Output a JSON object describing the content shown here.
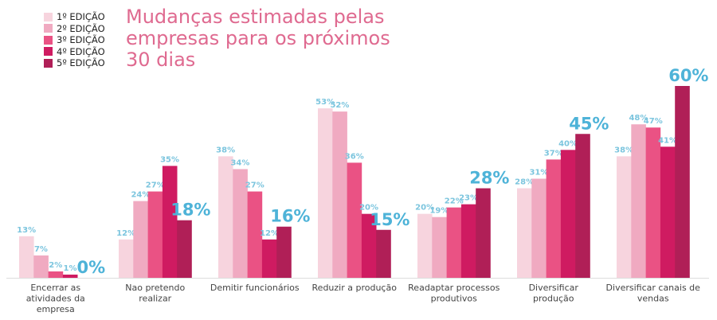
{
  "chart_data": {
    "type": "bar",
    "title": "Mudanças estimadas pelas empresas para os próximos 30 dias",
    "categories": [
      [
        "Encerrar as",
        "atividades da",
        "empresa"
      ],
      [
        "Nao pretendo",
        "realizar"
      ],
      [
        "Demitir funcionários"
      ],
      [
        "Reduzir a produção"
      ],
      [
        "Readaptar processos",
        "produtivos"
      ],
      [
        "Diversificar",
        "produção"
      ],
      [
        "Diversificar canais de",
        "vendas"
      ]
    ],
    "series": [
      {
        "name": "1º EDIÇÃO",
        "color": "#f7d4de",
        "values": [
          13,
          12,
          38,
          53,
          20,
          28,
          38
        ]
      },
      {
        "name": "2º EDIÇÃO",
        "color": "#f0aac1",
        "values": [
          7,
          24,
          34,
          52,
          19,
          31,
          48
        ]
      },
      {
        "name": "3º EDIÇÃO",
        "color": "#ea5284",
        "values": [
          2,
          27,
          27,
          36,
          22,
          37,
          47
        ]
      },
      {
        "name": "4º EDIÇÃO",
        "color": "#cf1b61",
        "values": [
          1,
          35,
          12,
          20,
          23,
          40,
          41
        ]
      },
      {
        "name": "5º EDIÇÃO",
        "color": "#b01f57",
        "values": [
          0,
          18,
          16,
          15,
          28,
          45,
          60
        ]
      }
    ],
    "value_suffix": "%",
    "ylim": [
      0,
      60
    ],
    "grid": false,
    "legend_position": "top-left",
    "label_color": "#4eb3d8"
  }
}
